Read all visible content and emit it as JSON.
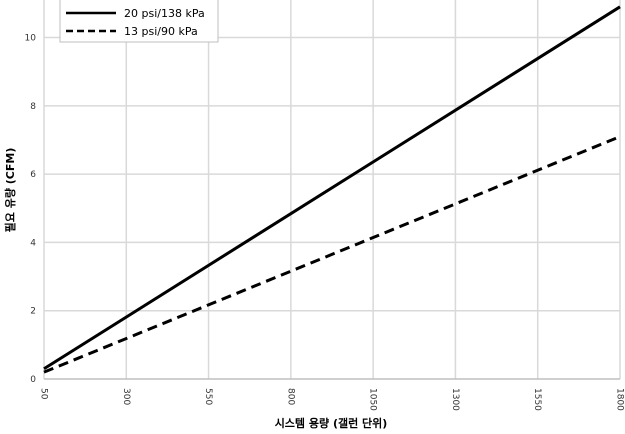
{
  "chart_data": {
    "type": "line",
    "title": "",
    "xlabel": "시스템 용량 (갤런 단위)",
    "ylabel": "필요 유량 (CFM)",
    "x_ticks": [
      "50",
      "300",
      "550",
      "800",
      "1050",
      "1300",
      "1550",
      "1800"
    ],
    "y_ticks": [
      "0",
      "2",
      "4",
      "6",
      "8",
      "10"
    ],
    "xlim": [
      50,
      1800
    ],
    "ylim": [
      0,
      11.1
    ],
    "grid": true,
    "legend_position": "top-left",
    "series": [
      {
        "name": "20 psi/138 kPa",
        "style": "solid",
        "color": "#000000",
        "x": [
          50,
          1800
        ],
        "y": [
          0.3,
          10.9
        ]
      },
      {
        "name": "13 psi/90 kPa",
        "style": "dashed",
        "color": "#000000",
        "x": [
          50,
          1800
        ],
        "y": [
          0.2,
          7.1
        ]
      }
    ]
  }
}
